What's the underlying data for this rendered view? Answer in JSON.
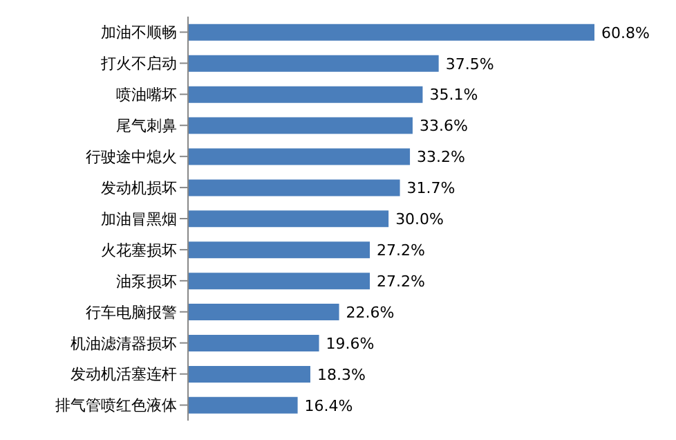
{
  "chart_data": {
    "type": "bar",
    "orientation": "horizontal",
    "categories": [
      "加油不顺畅",
      "打火不启动",
      "喷油嘴坏",
      "尾气刺鼻",
      "行驶途中熄火",
      "发动机损坏",
      "加油冒黑烟",
      "火花塞损坏",
      "油泵损坏",
      "行车电脑报警",
      "机油滤清器损坏",
      "发动机活塞连杆",
      "排气管喷红色液体"
    ],
    "values": [
      60.8,
      37.5,
      35.1,
      33.6,
      33.2,
      31.7,
      30.0,
      27.2,
      27.2,
      22.6,
      19.6,
      18.3,
      16.4
    ],
    "value_labels": [
      "60.8%",
      "37.5%",
      "35.1%",
      "33.6%",
      "33.2%",
      "31.7%",
      "30.0%",
      "27.2%",
      "27.2%",
      "22.6%",
      "19.6%",
      "18.3%",
      "16.4%"
    ],
    "color": "#4a7ebb"
  }
}
